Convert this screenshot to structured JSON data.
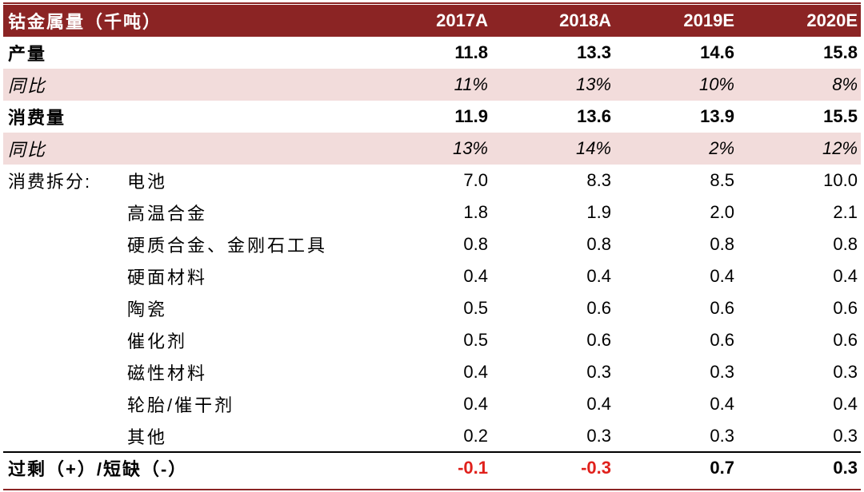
{
  "chart_data": {
    "type": "table",
    "header": {
      "title": "钴金属量（千吨）",
      "columns": [
        "2017A",
        "2018A",
        "2019E",
        "2020E"
      ]
    },
    "production": {
      "label": "产量",
      "values": [
        "11.8",
        "13.3",
        "14.6",
        "15.8"
      ]
    },
    "production_yoy": {
      "label": "同比",
      "values": [
        "11%",
        "13%",
        "10%",
        "8%"
      ]
    },
    "consumption": {
      "label": "消费量",
      "values": [
        "11.9",
        "13.6",
        "13.9",
        "15.5"
      ]
    },
    "consumption_yoy": {
      "label": "同比",
      "values": [
        "13%",
        "14%",
        "2%",
        "12%"
      ]
    },
    "breakdown": {
      "label": "消费拆分:",
      "items": [
        {
          "name": "电池",
          "values": [
            "7.0",
            "8.3",
            "8.5",
            "10.0"
          ]
        },
        {
          "name": "高温合金",
          "values": [
            "1.8",
            "1.9",
            "2.0",
            "2.1"
          ]
        },
        {
          "name": "硬质合金、金刚石工具",
          "values": [
            "0.8",
            "0.8",
            "0.8",
            "0.8"
          ]
        },
        {
          "name": "硬面材料",
          "values": [
            "0.4",
            "0.4",
            "0.4",
            "0.4"
          ]
        },
        {
          "name": "陶瓷",
          "values": [
            "0.5",
            "0.6",
            "0.6",
            "0.6"
          ]
        },
        {
          "name": "催化剂",
          "values": [
            "0.5",
            "0.6",
            "0.6",
            "0.6"
          ]
        },
        {
          "name": "磁性材料",
          "values": [
            "0.4",
            "0.3",
            "0.3",
            "0.3"
          ]
        },
        {
          "name": "轮胎/催干剂",
          "values": [
            "0.4",
            "0.4",
            "0.4",
            "0.4"
          ]
        },
        {
          "name": "其他",
          "values": [
            "0.2",
            "0.3",
            "0.3",
            "0.3"
          ]
        }
      ]
    },
    "balance": {
      "label": "过剩（+）/短缺（-）",
      "values": [
        "-0.1",
        "-0.3",
        "0.7",
        "0.3"
      ]
    },
    "colors": {
      "header_bg": "#8b2424",
      "shade": "#f2dcdb",
      "negative": "#e0201b"
    }
  }
}
